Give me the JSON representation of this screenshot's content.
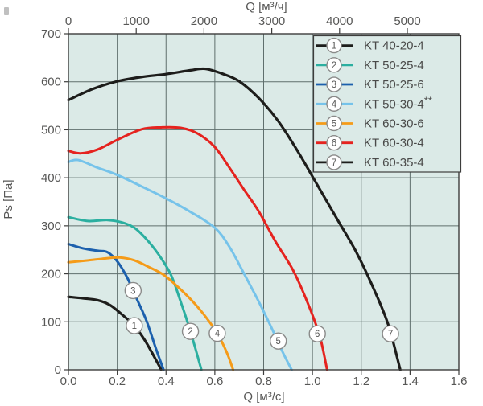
{
  "chart_data": {
    "type": "line",
    "title": "",
    "grid": true,
    "legend_position": "top-right",
    "colors": {
      "plot_background": "#dbeae7",
      "grid": "#5f6f6d",
      "border": "#3d3d3c",
      "tick_text": "#575756",
      "legend_text": "#4a4a49",
      "marker_circle_stroke": "#8a8a89",
      "marker_circle_fill": "#ffffff"
    },
    "axes": {
      "bottom": {
        "label": "Q [м³/с]",
        "range": [
          0,
          1.6
        ],
        "ticks": [
          0,
          0.2,
          0.4,
          0.6,
          0.8,
          1.0,
          1.2,
          1.4,
          1.6
        ],
        "tick_labels": [
          "0.0",
          "0.2",
          "0.4",
          "0.6",
          "0.8",
          "1.0",
          "1.2",
          "1.4",
          "1.6"
        ]
      },
      "top": {
        "label": "Q [м³/ч]",
        "units_per_bottom_unit": 3600,
        "ticks": [
          0,
          1000,
          2000,
          3000,
          4000,
          5000
        ],
        "tick_labels": [
          "0",
          "1000",
          "2000",
          "3000",
          "4000",
          "5000"
        ]
      },
      "left": {
        "label": "Ps [Па]",
        "range": [
          0,
          700
        ],
        "ticks": [
          0,
          100,
          200,
          300,
          400,
          500,
          600,
          700
        ],
        "tick_labels": [
          "0",
          "100",
          "200",
          "300",
          "400",
          "500",
          "600",
          "700"
        ]
      }
    },
    "series": [
      {
        "num": "1",
        "name": "KT 40-20-4",
        "color": "#1d1d1b",
        "points": [
          [
            0,
            152
          ],
          [
            0.06,
            149
          ],
          [
            0.12,
            145
          ],
          [
            0.17,
            135
          ],
          [
            0.22,
            115
          ],
          [
            0.27,
            92
          ],
          [
            0.31,
            64
          ],
          [
            0.34,
            38
          ],
          [
            0.37,
            10
          ],
          [
            0.38,
            0
          ]
        ]
      },
      {
        "num": "2",
        "name": "KT 50-25-4",
        "color": "#2bafa0",
        "points": [
          [
            0,
            318
          ],
          [
            0.08,
            310
          ],
          [
            0.16,
            312
          ],
          [
            0.22,
            307
          ],
          [
            0.27,
            296
          ],
          [
            0.32,
            272
          ],
          [
            0.37,
            240
          ],
          [
            0.42,
            198
          ],
          [
            0.46,
            142
          ],
          [
            0.5,
            80
          ],
          [
            0.545,
            0
          ]
        ]
      },
      {
        "num": "3",
        "name": "KT 50-25-6",
        "color": "#1c60ad",
        "points": [
          [
            0,
            262
          ],
          [
            0.06,
            253
          ],
          [
            0.12,
            248
          ],
          [
            0.16,
            245
          ],
          [
            0.2,
            226
          ],
          [
            0.24,
            193
          ],
          [
            0.28,
            148
          ],
          [
            0.32,
            102
          ],
          [
            0.36,
            42
          ],
          [
            0.39,
            0
          ]
        ]
      },
      {
        "num": "4",
        "name": "KT 50-30-4**",
        "color": "#76c3ea",
        "points": [
          [
            0,
            433
          ],
          [
            0.04,
            437
          ],
          [
            0.12,
            421
          ],
          [
            0.2,
            406
          ],
          [
            0.3,
            382
          ],
          [
            0.4,
            357
          ],
          [
            0.5,
            329
          ],
          [
            0.6,
            296
          ],
          [
            0.66,
            256
          ],
          [
            0.72,
            200
          ],
          [
            0.78,
            142
          ],
          [
            0.83,
            90
          ],
          [
            0.88,
            35
          ],
          [
            0.915,
            0
          ]
        ]
      },
      {
        "num": "5",
        "name": "KT 60-30-6",
        "color": "#f59b18",
        "points": [
          [
            0,
            224
          ],
          [
            0.08,
            228
          ],
          [
            0.15,
            232
          ],
          [
            0.21,
            234
          ],
          [
            0.27,
            228
          ],
          [
            0.33,
            214
          ],
          [
            0.39,
            198
          ],
          [
            0.45,
            172
          ],
          [
            0.51,
            142
          ],
          [
            0.56,
            112
          ],
          [
            0.61,
            76
          ],
          [
            0.65,
            35
          ],
          [
            0.675,
            0
          ]
        ]
      },
      {
        "num": "6",
        "name": "KT 60-30-4",
        "color": "#e5231f",
        "points": [
          [
            0,
            456
          ],
          [
            0.05,
            451
          ],
          [
            0.12,
            459
          ],
          [
            0.2,
            479
          ],
          [
            0.3,
            501
          ],
          [
            0.38,
            505
          ],
          [
            0.46,
            504
          ],
          [
            0.53,
            492
          ],
          [
            0.6,
            464
          ],
          [
            0.66,
            421
          ],
          [
            0.72,
            375
          ],
          [
            0.78,
            330
          ],
          [
            0.85,
            266
          ],
          [
            0.92,
            208
          ],
          [
            0.98,
            140
          ],
          [
            1.03,
            70
          ],
          [
            1.06,
            0
          ]
        ]
      },
      {
        "num": "7",
        "name": "KT 60-35-4",
        "color": "#1d1d1b",
        "points": [
          [
            0,
            562
          ],
          [
            0.1,
            585
          ],
          [
            0.2,
            601
          ],
          [
            0.3,
            610
          ],
          [
            0.4,
            616
          ],
          [
            0.5,
            624
          ],
          [
            0.56,
            627
          ],
          [
            0.63,
            617
          ],
          [
            0.7,
            601
          ],
          [
            0.78,
            566
          ],
          [
            0.86,
            518
          ],
          [
            0.94,
            455
          ],
          [
            1.02,
            385
          ],
          [
            1.1,
            315
          ],
          [
            1.18,
            245
          ],
          [
            1.25,
            170
          ],
          [
            1.31,
            95
          ],
          [
            1.36,
            0
          ]
        ]
      }
    ],
    "curve_markers": [
      {
        "num": "1",
        "q": 0.27,
        "ps": 92
      },
      {
        "num": "2",
        "q": 0.5,
        "ps": 80
      },
      {
        "num": "3",
        "q": 0.265,
        "ps": 165
      },
      {
        "num": "4",
        "q": 0.61,
        "ps": 76
      },
      {
        "num": "5",
        "q": 0.86,
        "ps": 60
      },
      {
        "num": "6",
        "q": 1.02,
        "ps": 75
      },
      {
        "num": "7",
        "q": 1.32,
        "ps": 75
      }
    ],
    "legend_items": [
      {
        "num": "1",
        "label": "KT 40-20-4",
        "color": "#1d1d1b"
      },
      {
        "num": "2",
        "label": "KT 50-25-4",
        "color": "#2bafa0"
      },
      {
        "num": "3",
        "label": "KT 50-25-6",
        "color": "#1c60ad"
      },
      {
        "num": "4",
        "label": "KT 50-30-4**",
        "color": "#76c3ea"
      },
      {
        "num": "5",
        "label": "KT 60-30-6",
        "color": "#f59b18"
      },
      {
        "num": "6",
        "label": "KT 60-30-4",
        "color": "#e5231f"
      },
      {
        "num": "7",
        "label": "KT 60-35-4",
        "color": "#1d1d1b"
      }
    ]
  }
}
